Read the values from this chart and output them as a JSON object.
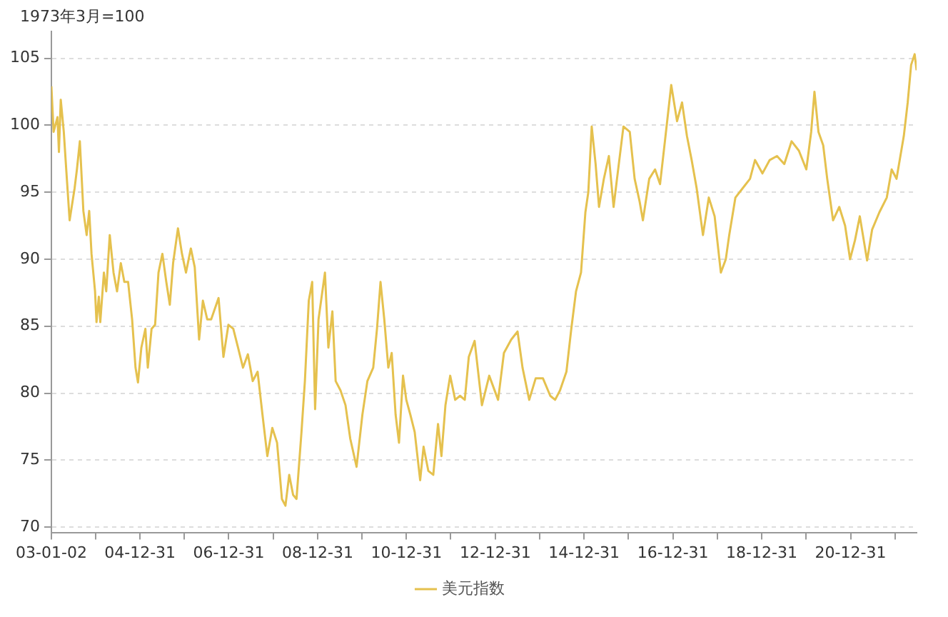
{
  "chart_data": {
    "type": "line",
    "ylabel": "1973年3月=100",
    "x": [
      "2003-01-02",
      "2003-01-20",
      "2003-02-21",
      "2003-03-05",
      "2003-03-20",
      "2003-04-14",
      "2003-05-04",
      "2003-06-01",
      "2003-07-12",
      "2003-07-31",
      "2003-08-24",
      "2003-09-22",
      "2003-10-19",
      "2003-11-09",
      "2003-11-28",
      "2003-12-27",
      "2004-01-08",
      "2004-01-27",
      "2004-02-08",
      "2004-03-09",
      "2004-03-28",
      "2004-04-26",
      "2004-05-27",
      "2004-06-25",
      "2004-07-26",
      "2004-08-24",
      "2004-09-24",
      "2004-10-27",
      "2004-11-24",
      "2004-12-14",
      "2005-01-11",
      "2005-02-13",
      "2005-03-05",
      "2005-04-05",
      "2005-05-04",
      "2005-06-01",
      "2005-07-03",
      "2005-08-04",
      "2005-09-02",
      "2005-09-29",
      "2005-11-08",
      "2005-12-11",
      "2006-01-13",
      "2006-02-22",
      "2006-03-26",
      "2006-05-01",
      "2006-06-01",
      "2006-07-07",
      "2006-08-08",
      "2006-10-08",
      "2006-11-17",
      "2006-12-28",
      "2007-02-06",
      "2007-03-17",
      "2007-04-27",
      "2007-06-06",
      "2007-07-16",
      "2007-08-25",
      "2007-10-04",
      "2007-11-13",
      "2007-12-24",
      "2008-02-01",
      "2008-03-12",
      "2008-04-10",
      "2008-05-11",
      "2008-06-12",
      "2008-07-10",
      "2008-08-20",
      "2008-09-17",
      "2008-10-19",
      "2008-11-16",
      "2008-12-10",
      "2009-01-07",
      "2009-03-01",
      "2009-03-29",
      "2009-05-01",
      "2009-05-28",
      "2009-07-07",
      "2009-08-17",
      "2009-09-25",
      "2009-11-16",
      "2010-01-03",
      "2010-02-13",
      "2010-04-02",
      "2010-05-03",
      "2010-06-01",
      "2010-07-02",
      "2010-08-04",
      "2010-09-01",
      "2010-10-03",
      "2010-10-31",
      "2010-12-03",
      "2010-12-30",
      "2011-02-01",
      "2011-03-09",
      "2011-04-23",
      "2011-05-21",
      "2011-06-29",
      "2011-08-09",
      "2011-09-17",
      "2011-10-15",
      "2011-11-17",
      "2011-12-26",
      "2012-02-05",
      "2012-03-16",
      "2012-04-24",
      "2012-05-27",
      "2012-07-14",
      "2012-09-12",
      "2012-11-11",
      "2013-01-23",
      "2013-03-12",
      "2013-05-11",
      "2013-07-02",
      "2013-08-12",
      "2013-10-06",
      "2013-11-28",
      "2014-01-27",
      "2014-03-28",
      "2014-05-07",
      "2014-06-16",
      "2014-08-08",
      "2014-09-17",
      "2014-10-26",
      "2014-12-06",
      "2015-01-11",
      "2015-02-04",
      "2015-03-04",
      "2015-04-05",
      "2015-05-03",
      "2015-06-12",
      "2015-07-23",
      "2015-08-31",
      "2015-09-28",
      "2015-11-20",
      "2016-01-11",
      "2016-02-20",
      "2016-04-01",
      "2016-04-28",
      "2016-06-19",
      "2016-08-06",
      "2016-09-16",
      "2016-10-26",
      "2016-12-17",
      "2017-02-03",
      "2017-03-16",
      "2017-04-25",
      "2017-06-03",
      "2017-07-14",
      "2017-09-04",
      "2017-10-22",
      "2017-12-09",
      "2018-01-29",
      "2018-03-11",
      "2018-04-08",
      "2018-05-29",
      "2018-07-28",
      "2018-09-26",
      "2018-11-06",
      "2019-01-06",
      "2019-03-07",
      "2019-05-06",
      "2019-07-05",
      "2019-09-03",
      "2019-11-02",
      "2020-01-02",
      "2020-02-11",
      "2020-03-09",
      "2020-04-11",
      "2020-05-20",
      "2020-06-22",
      "2020-08-09",
      "2020-09-29",
      "2020-11-16",
      "2020-12-27",
      "2021-02-05",
      "2021-03-17",
      "2021-05-16",
      "2021-06-26",
      "2021-08-25",
      "2021-10-25",
      "2021-12-04",
      "2022-01-13",
      "2022-03-14",
      "2022-04-15",
      "2022-05-13",
      "2022-06-11",
      "2022-06-27"
    ],
    "series": [
      {
        "name": "美元指数",
        "color": "#e5c14e",
        "values": [
          102.9,
          99.5,
          100.6,
          98,
          101.9,
          99.5,
          96.7,
          92.9,
          95.3,
          96.7,
          98.8,
          93.6,
          91.8,
          93.6,
          90.4,
          87.6,
          85.3,
          87.2,
          85.3,
          89,
          87.6,
          91.8,
          89,
          87.6,
          89.7,
          88.3,
          88.3,
          85.5,
          81.9,
          80.8,
          83.4,
          84.8,
          81.9,
          84.8,
          85.1,
          89,
          90.4,
          88.3,
          86.6,
          89.7,
          92.3,
          90.4,
          89,
          90.8,
          89.4,
          84,
          86.9,
          85.5,
          85.5,
          87.1,
          82.7,
          85.1,
          84.8,
          83.4,
          81.9,
          82.9,
          80.9,
          81.6,
          78.4,
          75.3,
          77.4,
          76.3,
          72.1,
          71.6,
          73.9,
          72.4,
          72.1,
          77.1,
          80.9,
          86.9,
          88.3,
          78.8,
          85.5,
          89,
          83.4,
          86.1,
          80.9,
          80.2,
          79.1,
          76.6,
          74.5,
          78.4,
          80.9,
          81.9,
          84.8,
          88.3,
          85.5,
          81.9,
          83,
          78.4,
          76.3,
          81.3,
          79.5,
          78.4,
          77.1,
          73.5,
          76,
          74.2,
          73.9,
          77.7,
          75.3,
          79.1,
          81.3,
          79.5,
          79.8,
          79.5,
          82.7,
          83.9,
          79.1,
          81.3,
          79.5,
          83,
          84,
          84.6,
          81.9,
          79.5,
          81.1,
          81.1,
          79.8,
          79.5,
          80.2,
          81.6,
          84.8,
          87.6,
          89,
          93.5,
          95,
          99.9,
          97.1,
          93.9,
          96,
          97.7,
          93.9,
          96,
          99.9,
          99.5,
          96,
          94.3,
          92.9,
          96,
          96.7,
          95.6,
          98.8,
          103,
          100.3,
          101.7,
          99.2,
          97.4,
          95.3,
          91.8,
          94.6,
          93.2,
          89,
          90,
          91.8,
          94.6,
          95.3,
          96,
          97.4,
          96.4,
          97.4,
          97.7,
          97.1,
          98.8,
          98.1,
          96.7,
          99.5,
          102.5,
          99.5,
          98.5,
          96,
          92.9,
          93.9,
          92.5,
          90,
          91.4,
          93.2,
          89.9,
          92.2,
          93.5,
          94.6,
          96.7,
          96,
          99.2,
          101.7,
          104.5,
          105.3,
          104.1
        ]
      }
    ],
    "xlim": [
      "2003-01-02",
      "2022-06-27"
    ],
    "xticks": [
      {
        "value": "2003-01-02",
        "label": "03-01-02"
      },
      {
        "value": "2003-12-31",
        "label": null
      },
      {
        "value": "2004-12-31",
        "label": "04-12-31"
      },
      {
        "value": "2005-12-31",
        "label": null
      },
      {
        "value": "2006-12-31",
        "label": "06-12-31"
      },
      {
        "value": "2007-12-31",
        "label": null
      },
      {
        "value": "2008-12-31",
        "label": "08-12-31"
      },
      {
        "value": "2009-12-31",
        "label": null
      },
      {
        "value": "2010-12-31",
        "label": "10-12-31"
      },
      {
        "value": "2011-12-31",
        "label": null
      },
      {
        "value": "2012-12-31",
        "label": "12-12-31"
      },
      {
        "value": "2013-12-31",
        "label": null
      },
      {
        "value": "2014-12-31",
        "label": "14-12-31"
      },
      {
        "value": "2015-12-31",
        "label": null
      },
      {
        "value": "2016-12-31",
        "label": "16-12-31"
      },
      {
        "value": "2017-12-31",
        "label": null
      },
      {
        "value": "2018-12-31",
        "label": "18-12-31"
      },
      {
        "value": "2019-12-31",
        "label": null
      },
      {
        "value": "2020-12-31",
        "label": "20-12-31"
      },
      {
        "value": "2021-12-31",
        "label": null
      }
    ],
    "ylim": [
      69.6,
      107
    ],
    "yticks": [
      70,
      75,
      80,
      85,
      90,
      95,
      100,
      105
    ],
    "grid": "y",
    "legend": "bottom",
    "marker": "none",
    "line_style": "solid"
  }
}
